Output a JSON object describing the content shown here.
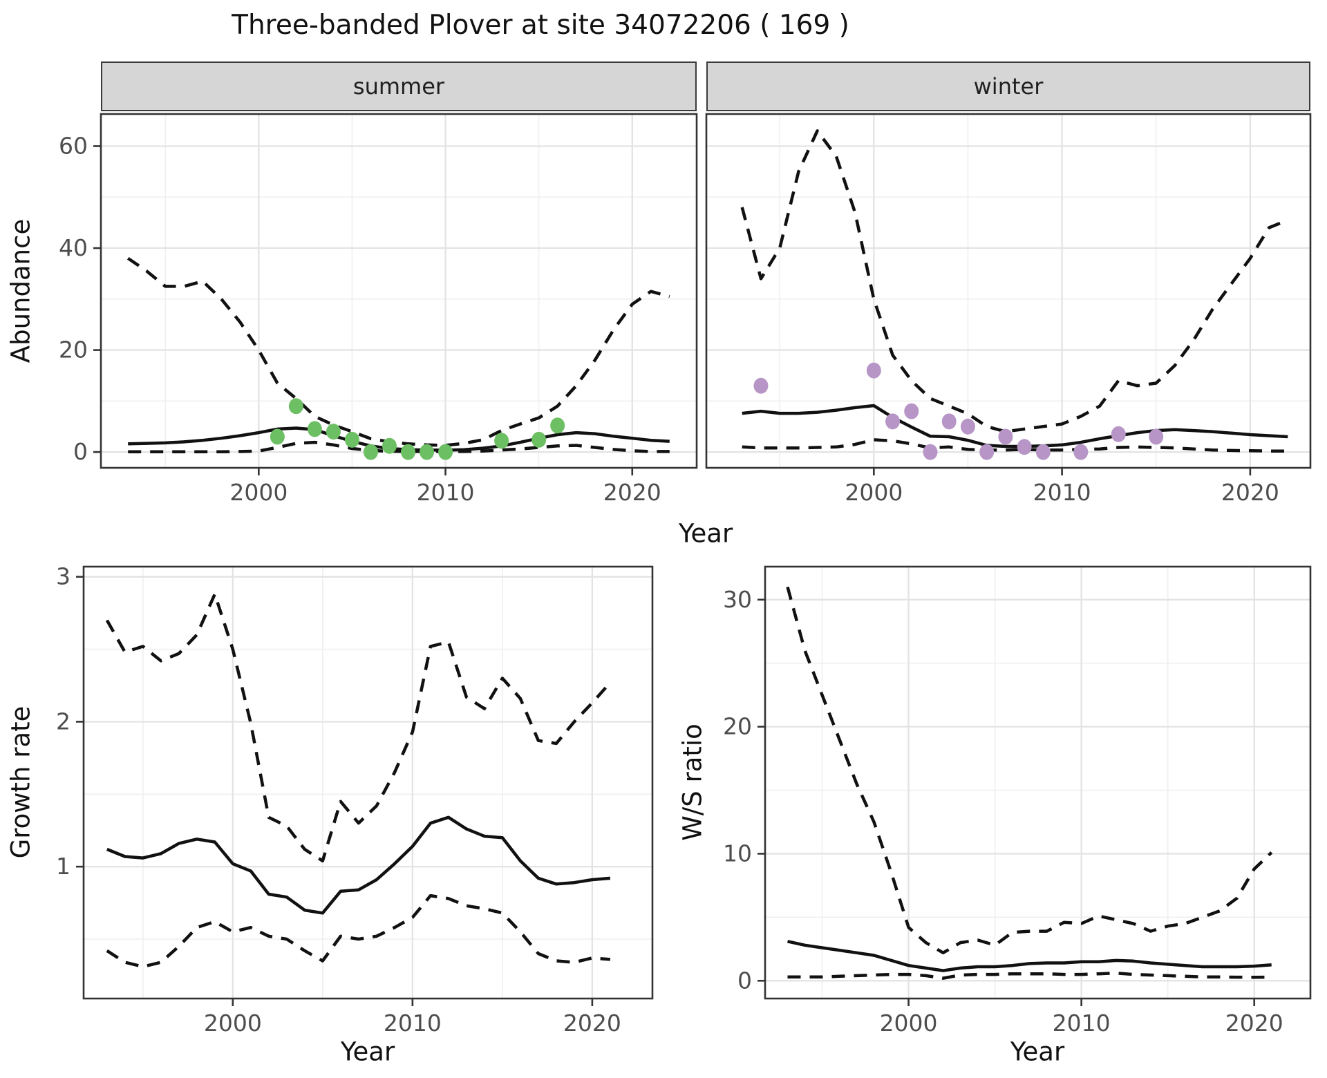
{
  "title": "Three-banded Plover at site 34072206 ( 169 )",
  "colors": {
    "summer_points": "#6CBF63",
    "winter_points": "#B796C7",
    "line": "#111111",
    "strip_background": "#D6D6D6",
    "tick_label": "#4D4D4D"
  },
  "chart_data": [
    {
      "id": "abundance-summer",
      "type": "line",
      "facet_label": "summer",
      "xlabel": "Year",
      "ylabel": "Abundance",
      "grid": true,
      "legend": "none",
      "xlim": [
        1991.55,
        2023.45
      ],
      "ylim": [
        -3.1,
        66.3
      ],
      "x_ticks": [
        2000,
        2010,
        2020
      ],
      "x_minor": [
        1995,
        2005,
        2015
      ],
      "y_ticks": [
        0,
        20,
        40,
        60
      ],
      "y_minor": [
        10,
        30,
        50
      ],
      "years": [
        1993,
        1994,
        1995,
        1996,
        1997,
        1998,
        1999,
        2000,
        2001,
        2002,
        2003,
        2004,
        2005,
        2006,
        2007,
        2008,
        2009,
        2010,
        2011,
        2012,
        2013,
        2014,
        2015,
        2016,
        2017,
        2018,
        2019,
        2020,
        2021,
        2022
      ],
      "series": [
        {
          "name": "median",
          "style": "solid",
          "values": [
            1.6,
            1.7,
            1.8,
            2.0,
            2.3,
            2.7,
            3.2,
            3.8,
            4.5,
            4.7,
            4.4,
            3.2,
            2.1,
            1.2,
            0.7,
            0.45,
            0.4,
            0.35,
            0.45,
            0.75,
            1.2,
            1.9,
            2.7,
            3.4,
            3.8,
            3.6,
            3.1,
            2.7,
            2.3,
            2.1
          ]
        },
        {
          "name": "upper_ci",
          "style": "dashed",
          "values": [
            38,
            35.5,
            32.5,
            32.5,
            33.5,
            30,
            25.5,
            20,
            13.5,
            10.5,
            7,
            5.3,
            4,
            2.6,
            2,
            1.6,
            1.4,
            1.3,
            1.7,
            2.4,
            4.2,
            5.5,
            6.7,
            9,
            13,
            18,
            24,
            29,
            31.5,
            30.5
          ]
        },
        {
          "name": "lower_ci",
          "style": "dashed",
          "values": [
            0.05,
            0.05,
            0.05,
            0.05,
            0.05,
            0.05,
            0.1,
            0.2,
            0.9,
            1.7,
            1.9,
            1.4,
            0.7,
            0.3,
            0.15,
            0.1,
            0.1,
            0.1,
            0.1,
            0.2,
            0.4,
            0.6,
            0.9,
            1.2,
            1.3,
            0.9,
            0.5,
            0.25,
            0.1,
            0.1
          ]
        }
      ],
      "observations": {
        "color": "#6CBF63",
        "points": [
          [
            2001,
            3
          ],
          [
            2002,
            9
          ],
          [
            2003,
            4.5
          ],
          [
            2004,
            4
          ],
          [
            2005,
            2.4
          ],
          [
            2006,
            0
          ],
          [
            2007,
            1.2
          ],
          [
            2008,
            0
          ],
          [
            2009,
            0
          ],
          [
            2010,
            0
          ],
          [
            2013,
            2.2
          ],
          [
            2015,
            2.4
          ],
          [
            2016,
            5.2
          ]
        ]
      }
    },
    {
      "id": "abundance-winter",
      "type": "line",
      "facet_label": "winter",
      "xlabel": "Year",
      "ylabel": "Abundance",
      "grid": true,
      "legend": "none",
      "xlim": [
        1991.1,
        2023.2
      ],
      "ylim": [
        -3.1,
        66.3
      ],
      "x_ticks": [
        2000,
        2010,
        2020
      ],
      "x_minor": [
        1995,
        2005,
        2015
      ],
      "y_ticks": [
        0,
        20,
        40,
        60
      ],
      "y_minor": [
        10,
        30,
        50
      ],
      "years": [
        1993,
        1994,
        1995,
        1996,
        1997,
        1998,
        1999,
        2000,
        2001,
        2002,
        2003,
        2004,
        2005,
        2006,
        2007,
        2008,
        2009,
        2010,
        2011,
        2012,
        2013,
        2014,
        2015,
        2016,
        2017,
        2018,
        2019,
        2020,
        2021,
        2022
      ],
      "series": [
        {
          "name": "median",
          "style": "solid",
          "values": [
            7.6,
            8.0,
            7.6,
            7.6,
            7.8,
            8.2,
            8.7,
            9.1,
            6.8,
            4.9,
            3.1,
            3.0,
            2.3,
            1.3,
            1.1,
            1.1,
            1.2,
            1.4,
            1.9,
            2.6,
            3.2,
            3.8,
            4.2,
            4.4,
            4.2,
            4.0,
            3.7,
            3.4,
            3.2,
            3.0
          ]
        },
        {
          "name": "upper_ci",
          "style": "dashed",
          "values": [
            48,
            34,
            40,
            55,
            63,
            58,
            47,
            30,
            19,
            14,
            10.5,
            9,
            7.5,
            5,
            4,
            4.5,
            5,
            5.5,
            7,
            9,
            14,
            13,
            13.5,
            17,
            22,
            28,
            33,
            38,
            44,
            45.5
          ]
        },
        {
          "name": "lower_ci",
          "style": "dashed",
          "values": [
            1.0,
            0.8,
            0.8,
            0.8,
            0.9,
            1.0,
            1.5,
            2.4,
            2.2,
            1.6,
            0.8,
            1.0,
            0.5,
            0.4,
            0.4,
            0.5,
            0.4,
            0.4,
            0.5,
            0.6,
            0.9,
            1.0,
            0.9,
            0.8,
            0.6,
            0.4,
            0.3,
            0.25,
            0.2,
            0.2
          ]
        }
      ],
      "observations": {
        "color": "#B796C7",
        "points": [
          [
            1994,
            13
          ],
          [
            2000,
            16
          ],
          [
            2001,
            6
          ],
          [
            2002,
            8
          ],
          [
            2003,
            0
          ],
          [
            2004,
            6
          ],
          [
            2005,
            5
          ],
          [
            2006,
            0
          ],
          [
            2007,
            3
          ],
          [
            2008,
            1
          ],
          [
            2009,
            0
          ],
          [
            2011,
            0
          ],
          [
            2013,
            3.5
          ],
          [
            2015,
            3
          ]
        ]
      }
    },
    {
      "id": "growth-rate",
      "type": "line",
      "xlabel": "Year",
      "ylabel": "Growth rate",
      "grid": true,
      "legend": "none",
      "xlim": [
        1991.7,
        2023.35
      ],
      "ylim": [
        0.09,
        3.07
      ],
      "x_ticks": [
        2000,
        2010,
        2020
      ],
      "x_minor": [
        1995,
        2005,
        2015
      ],
      "y_ticks": [
        1,
        2,
        3
      ],
      "y_minor": [
        0.5,
        1.5,
        2.5
      ],
      "years": [
        1993,
        1994,
        1995,
        1996,
        1997,
        1998,
        1999,
        2000,
        2001,
        2002,
        2003,
        2004,
        2005,
        2006,
        2007,
        2008,
        2009,
        2010,
        2011,
        2012,
        2013,
        2014,
        2015,
        2016,
        2017,
        2018,
        2019,
        2020,
        2021
      ],
      "series": [
        {
          "name": "median",
          "style": "solid",
          "values": [
            1.12,
            1.07,
            1.06,
            1.09,
            1.16,
            1.19,
            1.17,
            1.02,
            0.97,
            0.81,
            0.79,
            0.7,
            0.68,
            0.83,
            0.84,
            0.91,
            1.02,
            1.14,
            1.3,
            1.34,
            1.26,
            1.21,
            1.2,
            1.04,
            0.92,
            0.88,
            0.89,
            0.91,
            0.92
          ]
        },
        {
          "name": "upper_ci",
          "style": "dashed",
          "values": [
            2.7,
            2.48,
            2.52,
            2.42,
            2.47,
            2.6,
            2.88,
            2.5,
            1.99,
            1.34,
            1.28,
            1.12,
            1.04,
            1.45,
            1.3,
            1.42,
            1.65,
            1.93,
            2.52,
            2.55,
            2.17,
            2.09,
            2.3,
            2.16,
            1.87,
            1.85,
            2.0,
            2.13,
            2.27
          ]
        },
        {
          "name": "lower_ci",
          "style": "dashed",
          "values": [
            0.42,
            0.34,
            0.31,
            0.34,
            0.45,
            0.58,
            0.62,
            0.55,
            0.58,
            0.52,
            0.5,
            0.42,
            0.35,
            0.52,
            0.5,
            0.52,
            0.58,
            0.65,
            0.8,
            0.78,
            0.73,
            0.71,
            0.68,
            0.55,
            0.4,
            0.35,
            0.34,
            0.37,
            0.36
          ]
        }
      ]
    },
    {
      "id": "ws-ratio",
      "type": "line",
      "xlabel": "Year",
      "ylabel": "W/S ratio",
      "grid": true,
      "legend": "none",
      "xlim": [
        1991.7,
        2023.25
      ],
      "ylim": [
        -1.4,
        32.6
      ],
      "x_ticks": [
        2000,
        2010,
        2020
      ],
      "x_minor": [
        1995,
        2005,
        2015
      ],
      "y_ticks": [
        0,
        10,
        20,
        30
      ],
      "y_minor": [
        5,
        15,
        25
      ],
      "years": [
        1993,
        1994,
        1995,
        1996,
        1997,
        1998,
        1999,
        2000,
        2001,
        2002,
        2003,
        2004,
        2005,
        2006,
        2007,
        2008,
        2009,
        2010,
        2011,
        2012,
        2013,
        2014,
        2015,
        2016,
        2017,
        2018,
        2019,
        2020,
        2021
      ],
      "series": [
        {
          "name": "median",
          "style": "solid",
          "values": [
            3.1,
            2.8,
            2.6,
            2.4,
            2.2,
            2.0,
            1.6,
            1.2,
            1.0,
            0.8,
            1.0,
            1.1,
            1.1,
            1.2,
            1.35,
            1.4,
            1.4,
            1.5,
            1.5,
            1.6,
            1.55,
            1.4,
            1.3,
            1.2,
            1.1,
            1.1,
            1.1,
            1.15,
            1.25
          ]
        },
        {
          "name": "upper_ci",
          "style": "dashed",
          "values": [
            31,
            26,
            22.5,
            19,
            15.5,
            12.5,
            8.5,
            4.2,
            3.0,
            2.2,
            3.0,
            3.2,
            2.8,
            3.8,
            3.9,
            3.9,
            4.6,
            4.5,
            5.1,
            4.8,
            4.5,
            3.9,
            4.3,
            4.5,
            5.0,
            5.5,
            6.5,
            8.8,
            10.1
          ]
        },
        {
          "name": "lower_ci",
          "style": "dashed",
          "values": [
            0.3,
            0.3,
            0.3,
            0.35,
            0.4,
            0.45,
            0.5,
            0.5,
            0.4,
            0.2,
            0.45,
            0.5,
            0.5,
            0.55,
            0.55,
            0.55,
            0.5,
            0.5,
            0.55,
            0.6,
            0.5,
            0.45,
            0.4,
            0.35,
            0.3,
            0.3,
            0.28,
            0.27,
            0.28
          ]
        }
      ]
    }
  ]
}
